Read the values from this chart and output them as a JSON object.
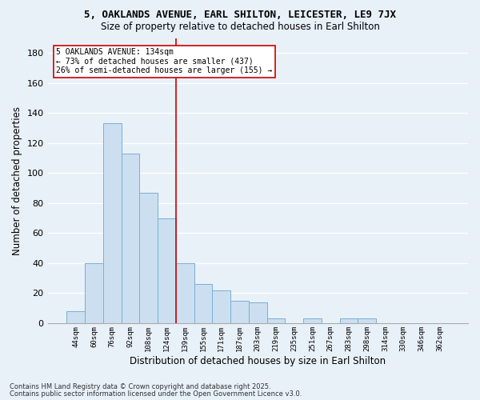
{
  "title1": "5, OAKLANDS AVENUE, EARL SHILTON, LEICESTER, LE9 7JX",
  "title2": "Size of property relative to detached houses in Earl Shilton",
  "xlabel": "Distribution of detached houses by size in Earl Shilton",
  "ylabel": "Number of detached properties",
  "categories": [
    "44sqm",
    "60sqm",
    "76sqm",
    "92sqm",
    "108sqm",
    "124sqm",
    "139sqm",
    "155sqm",
    "171sqm",
    "187sqm",
    "203sqm",
    "219sqm",
    "235sqm",
    "251sqm",
    "267sqm",
    "283sqm",
    "298sqm",
    "314sqm",
    "330sqm",
    "346sqm",
    "362sqm"
  ],
  "values": [
    8,
    40,
    133,
    113,
    87,
    70,
    40,
    26,
    22,
    15,
    14,
    3,
    0,
    3,
    0,
    3,
    3,
    0,
    0,
    0,
    0
  ],
  "bar_color": "#ccdff0",
  "bar_edge_color": "#7bafd4",
  "bg_color": "#e8f0f8",
  "grid_color": "#ffffff",
  "vline_x": 6.0,
  "vline_color": "#cc0000",
  "annotation_title": "5 OAKLANDS AVENUE: 134sqm",
  "annotation_line1": "← 73% of detached houses are smaller (437)",
  "annotation_line2": "26% of semi-detached houses are larger (155) →",
  "annotation_box_color": "#ffffff",
  "annotation_box_edge": "#cc0000",
  "footer1": "Contains HM Land Registry data © Crown copyright and database right 2025.",
  "footer2": "Contains public sector information licensed under the Open Government Licence v3.0.",
  "ylim": [
    0,
    190
  ],
  "yticks": [
    0,
    20,
    40,
    60,
    80,
    100,
    120,
    140,
    160,
    180
  ]
}
